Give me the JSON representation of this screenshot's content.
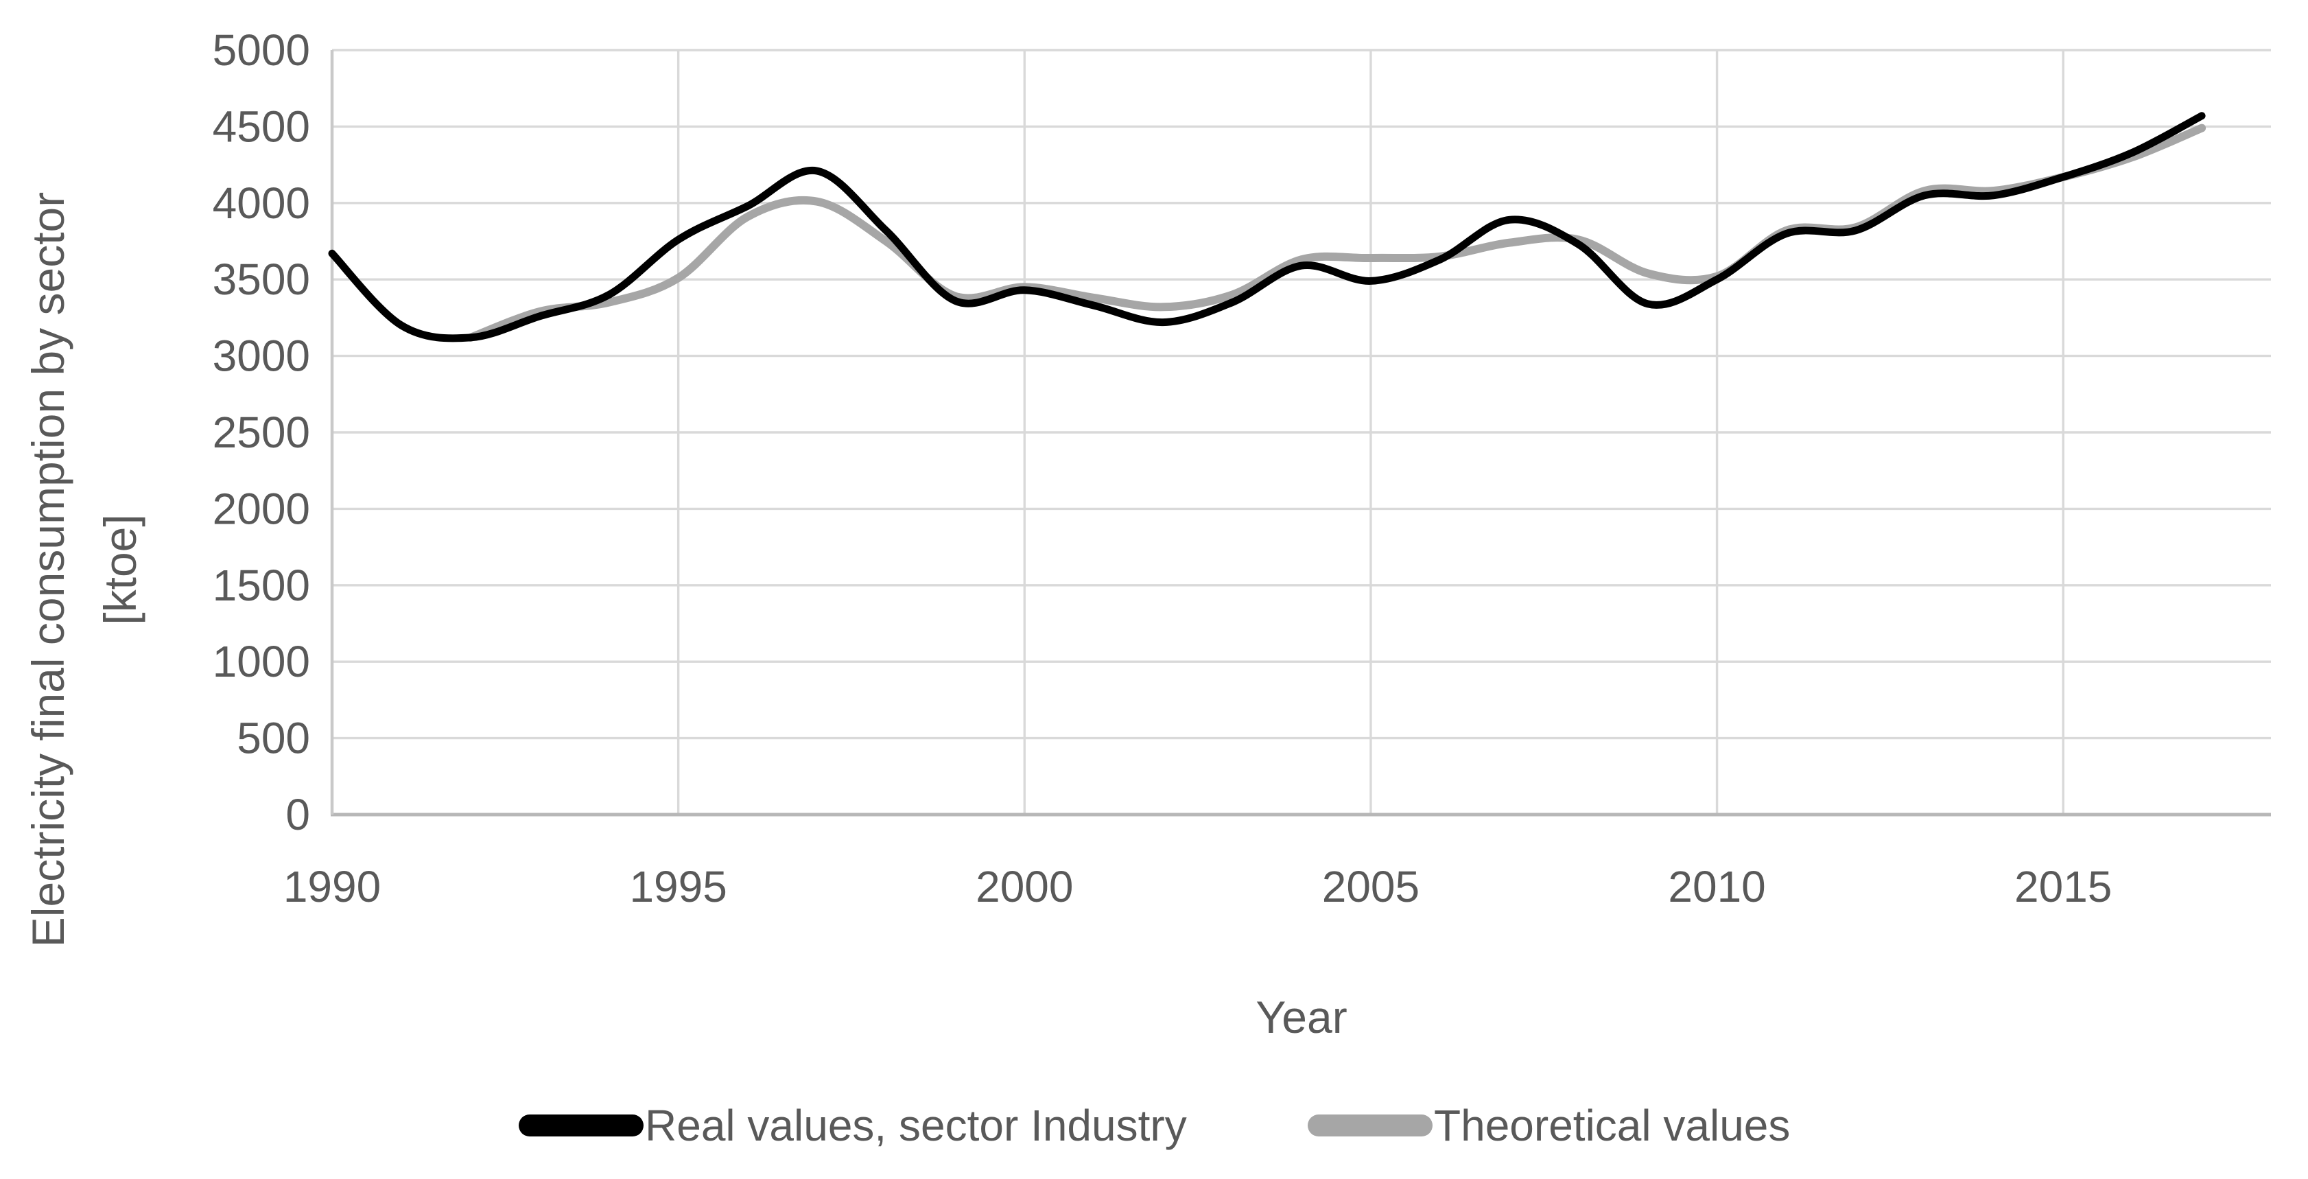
{
  "chart_data": {
    "type": "line",
    "title": "",
    "xlabel": "Year",
    "ylabel_line1": "Electricity final consumption by sector",
    "ylabel_line2": "[ktoe]",
    "xlim": [
      1990,
      2018
    ],
    "ylim": [
      0,
      5000
    ],
    "x_ticks": [
      1990,
      1995,
      2000,
      2005,
      2010,
      2015
    ],
    "y_ticks": [
      0,
      500,
      1000,
      1500,
      2000,
      2500,
      3000,
      3500,
      4000,
      4500,
      5000
    ],
    "grid": true,
    "legend_position": "bottom",
    "x": [
      1990,
      1991,
      1992,
      1993,
      1994,
      1995,
      1996,
      1997,
      1998,
      1999,
      2000,
      2001,
      2002,
      2003,
      2004,
      2005,
      2006,
      2007,
      2008,
      2009,
      2010,
      2011,
      2012,
      2013,
      2014,
      2015,
      2016,
      2017
    ],
    "series": [
      {
        "name": "Real values, sector Industry",
        "color": "#000000",
        "stroke_width": 11,
        "values": [
          3670,
          3200,
          3120,
          3260,
          3400,
          3760,
          3980,
          4210,
          3820,
          3360,
          3430,
          3330,
          3220,
          3350,
          3590,
          3490,
          3630,
          3890,
          3730,
          3340,
          3500,
          3800,
          3820,
          4050,
          4050,
          4170,
          4330,
          4570
        ]
      },
      {
        "name": "Theoretical values",
        "color": "#a6a6a6",
        "stroke_width": 12,
        "values": [
          null,
          null,
          3120,
          3290,
          3350,
          3510,
          3910,
          4010,
          3750,
          3390,
          3450,
          3380,
          3320,
          3400,
          3630,
          3640,
          3650,
          3740,
          3760,
          3540,
          3520,
          3820,
          3840,
          4080,
          4080,
          4170,
          4300,
          4490
        ]
      }
    ],
    "colors": {
      "background": "#ffffff",
      "gridline": "#d9d9d9",
      "axis_line": "#b7b7b7",
      "left_axis_line": "#c9c9c9",
      "text": "#595959"
    }
  }
}
